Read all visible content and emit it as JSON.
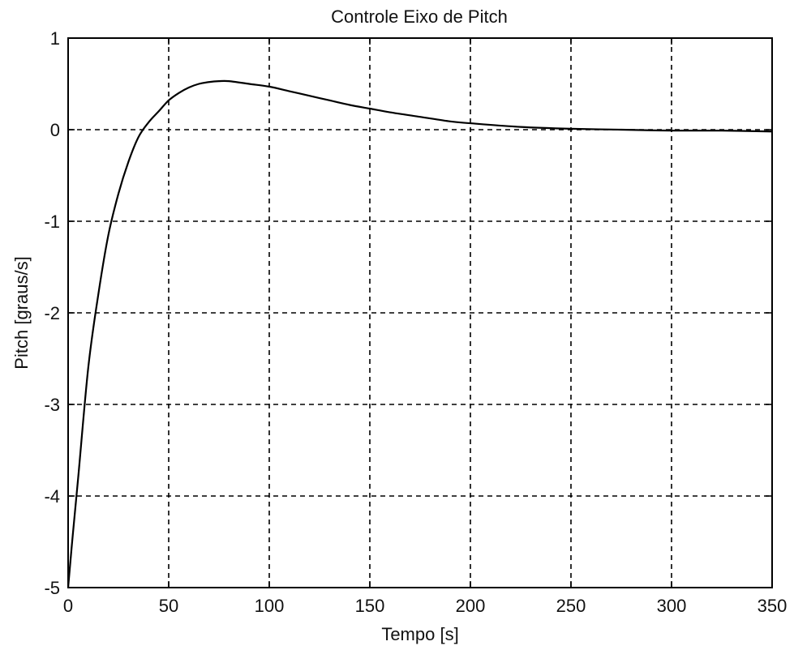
{
  "chart_data": {
    "type": "line",
    "title": "Controle Eixo de Pitch",
    "xlabel": "Tempo [s]",
    "ylabel": "Pitch [graus/s]",
    "xlim": [
      0,
      350
    ],
    "ylim": [
      -5,
      1
    ],
    "xticks": [
      0,
      50,
      100,
      150,
      200,
      250,
      300,
      350
    ],
    "yticks": [
      -5,
      -4,
      -3,
      -2,
      -1,
      0,
      1
    ],
    "xtick_labels": [
      "0",
      "50",
      "100",
      "150",
      "200",
      "250",
      "300",
      "350"
    ],
    "ytick_labels": [
      "-5",
      "-4",
      "-3",
      "-2",
      "-1",
      "0",
      "1"
    ],
    "grid": true,
    "series": [
      {
        "color": "#000000",
        "x": [
          0,
          2,
          5,
          10,
          15,
          20,
          25,
          30,
          35,
          40,
          45,
          50,
          55,
          60,
          65,
          70,
          75,
          80,
          90,
          100,
          110,
          120,
          130,
          140,
          150,
          160,
          175,
          190,
          200,
          225,
          250,
          275,
          300,
          325,
          350
        ],
        "y": [
          -5.0,
          -4.5,
          -3.8,
          -2.6,
          -1.8,
          -1.15,
          -0.7,
          -0.35,
          -0.08,
          0.08,
          0.2,
          0.32,
          0.4,
          0.46,
          0.5,
          0.52,
          0.53,
          0.53,
          0.5,
          0.47,
          0.42,
          0.37,
          0.32,
          0.27,
          0.23,
          0.19,
          0.14,
          0.09,
          0.07,
          0.03,
          0.01,
          0.0,
          -0.01,
          -0.01,
          -0.02
        ]
      }
    ]
  }
}
